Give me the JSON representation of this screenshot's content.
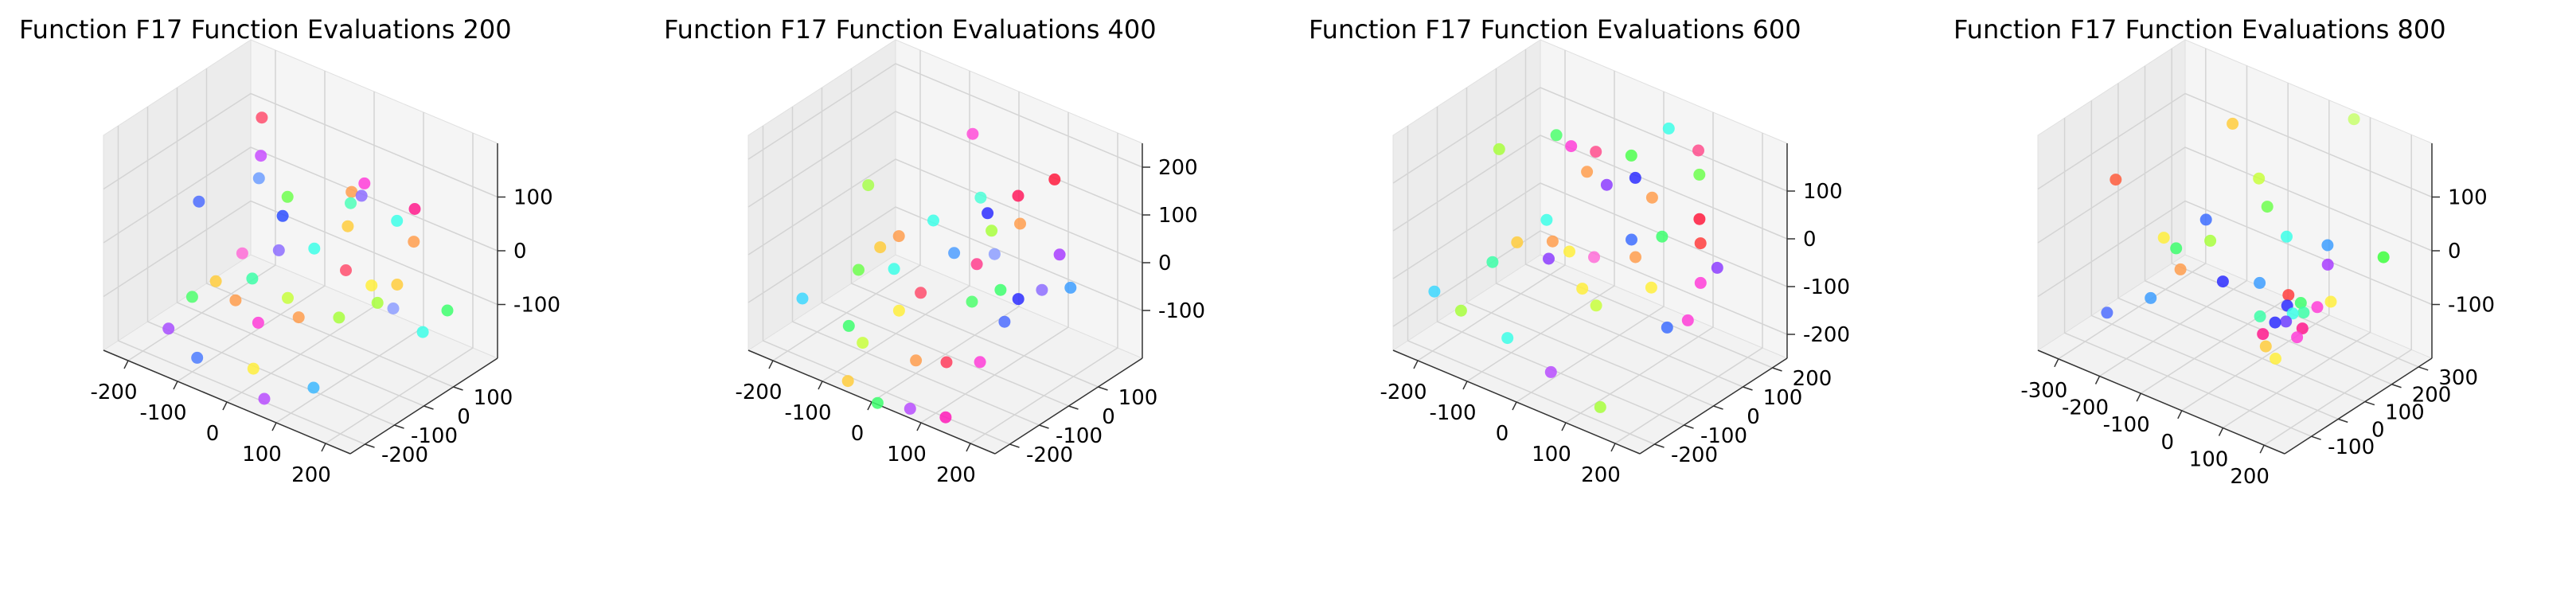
{
  "figure": {
    "panel_count": 4
  },
  "chart_data": [
    {
      "type": "scatter3d",
      "title": "Function F17 Function Evaluations 200",
      "xlim": [
        -250,
        250
      ],
      "ylim": [
        -250,
        250
      ],
      "zlim": [
        -200,
        200
      ],
      "xticks": [
        -200,
        -100,
        0,
        100,
        200
      ],
      "yticks": [
        -200,
        -100,
        0,
        100
      ],
      "zticks": [
        -100,
        0,
        100
      ],
      "points": [
        {
          "x": -150,
          "y": 120,
          "z": 140,
          "color": "#ff4d6d"
        },
        {
          "x": -140,
          "y": 100,
          "z": 80,
          "color": "#c84dff"
        },
        {
          "x": -170,
          "y": -60,
          "z": 40,
          "color": "#4d6dff"
        },
        {
          "x": -80,
          "y": 90,
          "z": 30,
          "color": "#6dff4d"
        },
        {
          "x": 20,
          "y": 140,
          "z": 60,
          "color": "#ff9d4d"
        },
        {
          "x": 40,
          "y": 150,
          "z": 80,
          "color": "#ff3dd8"
        },
        {
          "x": 30,
          "y": 120,
          "z": 50,
          "color": "#4dffb8"
        },
        {
          "x": -60,
          "y": 40,
          "z": 20,
          "color": "#2d4dff"
        },
        {
          "x": 60,
          "y": 60,
          "z": 40,
          "color": "#ffcc3d"
        },
        {
          "x": 100,
          "y": 160,
          "z": 30,
          "color": "#3dffe8"
        },
        {
          "x": 130,
          "y": 170,
          "z": 60,
          "color": "#ff1a8c"
        },
        {
          "x": 140,
          "y": 150,
          "z": 10,
          "color": "#ff9d4d"
        },
        {
          "x": -20,
          "y": -40,
          "z": 0,
          "color": "#8d6dff"
        },
        {
          "x": 80,
          "y": 20,
          "z": -20,
          "color": "#ff4d6d"
        },
        {
          "x": 10,
          "y": 30,
          "z": -10,
          "color": "#3dffe8"
        },
        {
          "x": -100,
          "y": -120,
          "z": -60,
          "color": "#ffcc3d"
        },
        {
          "x": 120,
          "y": 40,
          "z": -40,
          "color": "#ffee3d"
        },
        {
          "x": 160,
          "y": 60,
          "z": -30,
          "color": "#ffcc3d"
        },
        {
          "x": 170,
          "y": 30,
          "z": -60,
          "color": "#8d9dff"
        },
        {
          "x": 150,
          "y": 10,
          "z": -50,
          "color": "#a8ff3d"
        },
        {
          "x": -50,
          "y": -80,
          "z": -50,
          "color": "#3dffa8"
        },
        {
          "x": -130,
          "y": -150,
          "z": -90,
          "color": "#4dff6d"
        },
        {
          "x": -60,
          "y": -120,
          "z": -80,
          "color": "#ff9d4d"
        },
        {
          "x": -20,
          "y": -110,
          "z": -110,
          "color": "#ff3dd8"
        },
        {
          "x": 10,
          "y": -60,
          "z": -70,
          "color": "#c8ff3d"
        },
        {
          "x": 90,
          "y": -20,
          "z": -90,
          "color": "#a8ff3d"
        },
        {
          "x": 50,
          "y": -90,
          "z": -80,
          "color": "#ff9d4d"
        },
        {
          "x": 200,
          "y": 80,
          "z": -110,
          "color": "#3dffe8"
        },
        {
          "x": 220,
          "y": 130,
          "z": -80,
          "color": "#3dff6d"
        },
        {
          "x": -160,
          "y": -180,
          "z": -150,
          "color": "#a84dff"
        },
        {
          "x": -90,
          "y": -200,
          "z": -170,
          "color": "#4d7dff"
        },
        {
          "x": 0,
          "y": -160,
          "z": -170,
          "color": "#ffee3d"
        },
        {
          "x": 40,
          "y": -190,
          "z": -200,
          "color": "#b84dff"
        },
        {
          "x": 110,
          "y": -140,
          "z": -170,
          "color": "#3db8ff"
        },
        {
          "x": -120,
          "y": 60,
          "z": 60,
          "color": "#6d9dff"
        },
        {
          "x": -100,
          "y": -30,
          "z": -40,
          "color": "#ff6dd8"
        },
        {
          "x": 70,
          "y": 90,
          "z": 90,
          "color": "#8d6dff"
        }
      ]
    },
    {
      "type": "scatter3d",
      "title": "Function F17 Function Evaluations 400",
      "xlim": [
        -250,
        250
      ],
      "ylim": [
        -250,
        250
      ],
      "zlim": [
        -200,
        250
      ],
      "xticks": [
        -200,
        -100,
        0,
        100,
        200
      ],
      "yticks": [
        -200,
        -100,
        0,
        100
      ],
      "zticks": [
        -100,
        0,
        100,
        200
      ],
      "points": [
        {
          "x": -40,
          "y": 160,
          "z": 180,
          "color": "#ff4dd8"
        },
        {
          "x": -180,
          "y": 40,
          "z": 60,
          "color": "#a8ff4d"
        },
        {
          "x": 0,
          "y": 120,
          "z": 80,
          "color": "#4dffd8"
        },
        {
          "x": 20,
          "y": 110,
          "z": 60,
          "color": "#2d2dff"
        },
        {
          "x": 70,
          "y": 130,
          "z": 110,
          "color": "#ff1a5d"
        },
        {
          "x": 120,
          "y": 170,
          "z": 150,
          "color": "#ff1a3d"
        },
        {
          "x": 80,
          "y": 120,
          "z": 60,
          "color": "#ff9d4d"
        },
        {
          "x": -60,
          "y": 60,
          "z": 30,
          "color": "#3dffe8"
        },
        {
          "x": 40,
          "y": 90,
          "z": 40,
          "color": "#a8ff3d"
        },
        {
          "x": 160,
          "y": 120,
          "z": 30,
          "color": "#a83dff"
        },
        {
          "x": -120,
          "y": -20,
          "z": -20,
          "color": "#ffcc3d"
        },
        {
          "x": -100,
          "y": 10,
          "z": 0,
          "color": "#ff9d4d"
        },
        {
          "x": -80,
          "y": -40,
          "z": -40,
          "color": "#3dffe8"
        },
        {
          "x": 0,
          "y": 30,
          "z": 0,
          "color": "#4d9dff"
        },
        {
          "x": 40,
          "y": 40,
          "z": -10,
          "color": "#ff3d8d"
        },
        {
          "x": 100,
          "y": 20,
          "z": -30,
          "color": "#3dff6d"
        },
        {
          "x": 130,
          "y": 30,
          "z": -40,
          "color": "#2d2dff"
        },
        {
          "x": 160,
          "y": 60,
          "z": -20,
          "color": "#8d6dff"
        },
        {
          "x": 200,
          "y": 90,
          "z": -10,
          "color": "#3d9dff"
        },
        {
          "x": -140,
          "y": -60,
          "z": -60,
          "color": "#6dff4d"
        },
        {
          "x": -20,
          "y": -50,
          "z": -60,
          "color": "#ff4d6d"
        },
        {
          "x": 60,
          "y": -10,
          "z": -60,
          "color": "#4dff6d"
        },
        {
          "x": 120,
          "y": 0,
          "z": -80,
          "color": "#4d6dff"
        },
        {
          "x": -200,
          "y": -150,
          "z": -110,
          "color": "#3dd8ff"
        },
        {
          "x": -100,
          "y": -160,
          "z": -120,
          "color": "#3dff6d"
        },
        {
          "x": -60,
          "y": -180,
          "z": -130,
          "color": "#c8ff3d"
        },
        {
          "x": 30,
          "y": -150,
          "z": -140,
          "color": "#ff9d4d"
        },
        {
          "x": 80,
          "y": -130,
          "z": -130,
          "color": "#ff3d5d"
        },
        {
          "x": 130,
          "y": -100,
          "z": -120,
          "color": "#ff3dd8"
        },
        {
          "x": -60,
          "y": -230,
          "z": -190,
          "color": "#ffcc3d"
        },
        {
          "x": 0,
          "y": -230,
          "z": -210,
          "color": "#3dff6d"
        },
        {
          "x": 60,
          "y": -220,
          "z": -200,
          "color": "#b84dff"
        },
        {
          "x": 120,
          "y": -200,
          "z": -200,
          "color": "#ff1ab8"
        },
        {
          "x": -40,
          "y": -90,
          "z": -90,
          "color": "#ffee3d"
        },
        {
          "x": 70,
          "y": 50,
          "z": 20,
          "color": "#8d9dff"
        }
      ]
    },
    {
      "type": "scatter3d",
      "title": "Function F17 Function Evaluations 600",
      "xlim": [
        -250,
        250
      ],
      "ylim": [
        -250,
        250
      ],
      "zlim": [
        -250,
        200
      ],
      "xticks": [
        -200,
        -100,
        0,
        100,
        200
      ],
      "yticks": [
        -200,
        -100,
        0,
        100,
        200
      ],
      "zticks": [
        -200,
        -100,
        0,
        100
      ],
      "points": [
        {
          "x": 40,
          "y": 200,
          "z": 160,
          "color": "#3dffe8"
        },
        {
          "x": -60,
          "y": 120,
          "z": 100,
          "color": "#ff4d8d"
        },
        {
          "x": 0,
          "y": 140,
          "z": 110,
          "color": "#4dff4d"
        },
        {
          "x": 100,
          "y": 200,
          "z": 140,
          "color": "#ff4d8d"
        },
        {
          "x": 120,
          "y": 170,
          "z": 110,
          "color": "#6dff4d"
        },
        {
          "x": -220,
          "y": 60,
          "z": 60,
          "color": "#a8ff3d"
        },
        {
          "x": -140,
          "y": 120,
          "z": 100,
          "color": "#4dff6d"
        },
        {
          "x": -110,
          "y": 120,
          "z": 90,
          "color": "#ff3dd8"
        },
        {
          "x": -60,
          "y": 90,
          "z": 70,
          "color": "#ff9d4d"
        },
        {
          "x": -20,
          "y": 90,
          "z": 60,
          "color": "#8d3dff"
        },
        {
          "x": 20,
          "y": 120,
          "z": 80,
          "color": "#2d2dff"
        },
        {
          "x": 60,
          "y": 110,
          "z": 60,
          "color": "#ff9d4d"
        },
        {
          "x": 150,
          "y": 120,
          "z": 50,
          "color": "#ff1a3d"
        },
        {
          "x": 110,
          "y": 60,
          "z": 20,
          "color": "#3dff6d"
        },
        {
          "x": 170,
          "y": 90,
          "z": 20,
          "color": "#ff3d3d"
        },
        {
          "x": 60,
          "y": 40,
          "z": 0,
          "color": "#3d6dff"
        },
        {
          "x": 80,
          "y": 20,
          "z": -20,
          "color": "#ff9d4d"
        },
        {
          "x": 200,
          "y": 40,
          "z": -30,
          "color": "#ff3dd8"
        },
        {
          "x": 210,
          "y": 80,
          "z": -10,
          "color": "#8d3dff"
        },
        {
          "x": -100,
          "y": 20,
          "z": -20,
          "color": "#3dffe8"
        },
        {
          "x": -70,
          "y": -10,
          "z": -40,
          "color": "#ff9d4d"
        },
        {
          "x": -30,
          "y": -20,
          "z": -40,
          "color": "#ffee3d"
        },
        {
          "x": -60,
          "y": -40,
          "z": -60,
          "color": "#8d3dff"
        },
        {
          "x": -130,
          "y": -30,
          "z": -60,
          "color": "#ffcc3d"
        },
        {
          "x": -150,
          "y": -80,
          "z": -90,
          "color": "#3dffa8"
        },
        {
          "x": 20,
          "y": -60,
          "z": -80,
          "color": "#ffee3d"
        },
        {
          "x": 60,
          "y": -80,
          "z": -90,
          "color": "#c8ff3d"
        },
        {
          "x": 210,
          "y": -20,
          "z": -80,
          "color": "#ff3dd8"
        },
        {
          "x": 180,
          "y": -40,
          "z": -100,
          "color": "#3d6dff"
        },
        {
          "x": -220,
          "y": -160,
          "z": -150,
          "color": "#3dd8ff"
        },
        {
          "x": -160,
          "y": -170,
          "z": -160,
          "color": "#a8ff3d"
        },
        {
          "x": -60,
          "y": -180,
          "z": -170,
          "color": "#3dffe8"
        },
        {
          "x": 40,
          "y": -200,
          "z": -190,
          "color": "#b84dff"
        },
        {
          "x": 140,
          "y": -200,
          "z": -220,
          "color": "#a8ff3d"
        },
        {
          "x": 20,
          "y": -20,
          "z": -30,
          "color": "#ff6dd8"
        },
        {
          "x": 130,
          "y": -10,
          "z": -50,
          "color": "#ffee3d"
        }
      ]
    },
    {
      "type": "scatter3d",
      "title": "Function F17 Function Evaluations 800",
      "xlim": [
        -350,
        250
      ],
      "ylim": [
        -200,
        350
      ],
      "zlim": [
        -200,
        200
      ],
      "xticks": [
        -300,
        -200,
        -100,
        0,
        100,
        200
      ],
      "yticks": [
        -100,
        0,
        100,
        200,
        300
      ],
      "zticks": [
        -100,
        0,
        100
      ],
      "points": [
        {
          "x": -330,
          "y": 60,
          "z": 40,
          "color": "#ff5d3d"
        },
        {
          "x": -150,
          "y": 220,
          "z": 150,
          "color": "#ffcc3d"
        },
        {
          "x": 80,
          "y": 320,
          "z": 200,
          "color": "#c8ff6d"
        },
        {
          "x": -60,
          "y": 180,
          "z": 90,
          "color": "#c8ff3d"
        },
        {
          "x": -20,
          "y": 150,
          "z": 60,
          "color": "#6dff4d"
        },
        {
          "x": 40,
          "y": 130,
          "z": 30,
          "color": "#3dffe8"
        },
        {
          "x": 120,
          "y": 160,
          "z": 30,
          "color": "#3d9dff"
        },
        {
          "x": 230,
          "y": 200,
          "z": 30,
          "color": "#3dff3d"
        },
        {
          "x": -130,
          "y": 90,
          "z": 20,
          "color": "#3d6dff"
        },
        {
          "x": -100,
          "y": 60,
          "z": 0,
          "color": "#a8ff3d"
        },
        {
          "x": 140,
          "y": 130,
          "z": 10,
          "color": "#a83dff"
        },
        {
          "x": -200,
          "y": 40,
          "z": -20,
          "color": "#ffee3d"
        },
        {
          "x": -170,
          "y": 40,
          "z": -30,
          "color": "#3dff6d"
        },
        {
          "x": -140,
          "y": 10,
          "z": -50,
          "color": "#ff9d4d"
        },
        {
          "x": -50,
          "y": 30,
          "z": -50,
          "color": "#2d2dff"
        },
        {
          "x": 20,
          "y": 60,
          "z": -40,
          "color": "#3d9dff"
        },
        {
          "x": 90,
          "y": 60,
          "z": -40,
          "color": "#ff3d3d"
        },
        {
          "x": 100,
          "y": 40,
          "z": -50,
          "color": "#2d2dff"
        },
        {
          "x": 120,
          "y": 30,
          "z": -55,
          "color": "#3dffe8"
        },
        {
          "x": 140,
          "y": 40,
          "z": -50,
          "color": "#3dffa8"
        },
        {
          "x": 160,
          "y": 60,
          "z": -40,
          "color": "#ff3dd8"
        },
        {
          "x": 180,
          "y": 80,
          "z": -30,
          "color": "#ffee3d"
        },
        {
          "x": 110,
          "y": 20,
          "z": -70,
          "color": "#6d3dff"
        },
        {
          "x": 150,
          "y": 20,
          "z": -70,
          "color": "#ff1a8d"
        },
        {
          "x": 60,
          "y": 0,
          "z": -70,
          "color": "#3dffa8"
        },
        {
          "x": 80,
          "y": -20,
          "z": -90,
          "color": "#ff1a8d"
        },
        {
          "x": 100,
          "y": -40,
          "z": -100,
          "color": "#ffcc3d"
        },
        {
          "x": 130,
          "y": -50,
          "z": -110,
          "color": "#ffee3d"
        },
        {
          "x": 150,
          "y": 0,
          "z": -80,
          "color": "#ff3dd8"
        },
        {
          "x": -180,
          "y": -40,
          "z": -100,
          "color": "#3d9dff"
        },
        {
          "x": -260,
          "y": -80,
          "z": -140,
          "color": "#4d6dff"
        },
        {
          "x": 90,
          "y": 10,
          "z": -75,
          "color": "#2d2dff"
        },
        {
          "x": 120,
          "y": 60,
          "z": -45,
          "color": "#3dff6d"
        }
      ]
    }
  ]
}
